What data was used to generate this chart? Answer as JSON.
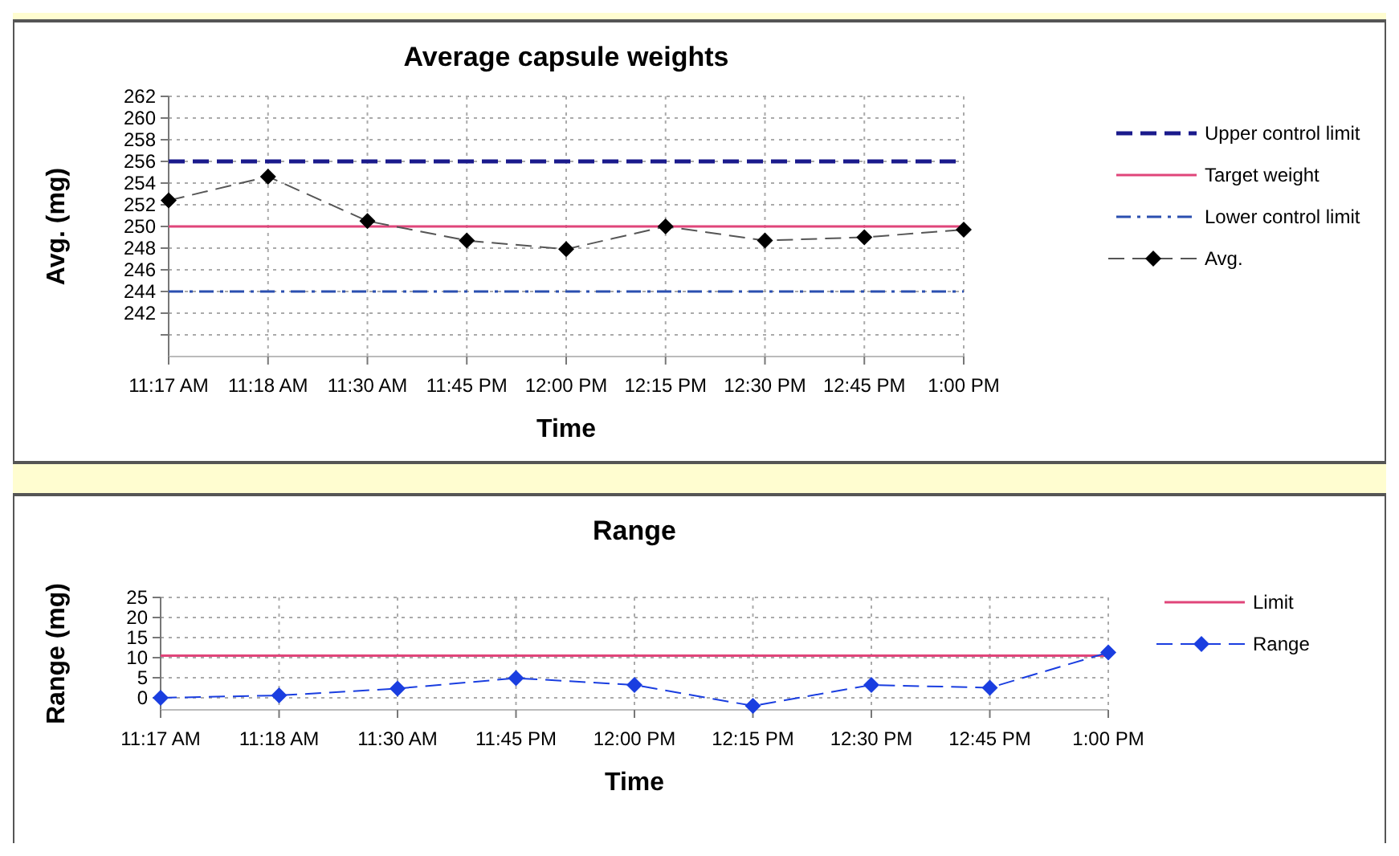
{
  "chart_data": [
    {
      "type": "line",
      "title": "Average capsule weights",
      "xlabel": "Time",
      "ylabel": "Avg. (mg)",
      "categories": [
        "11:17 AM",
        "11:18 AM",
        "11:30 AM",
        "11:45 PM",
        "12:00 PM",
        "12:15 PM",
        "12:30 PM",
        "12:45 PM",
        "1:00 PM"
      ],
      "series": [
        {
          "name": "Avg.",
          "color": "#000000",
          "values": [
            252.4,
            254.6,
            250.5,
            248.7,
            247.9,
            250.0,
            248.7,
            249.0,
            249.7
          ]
        }
      ],
      "ylim": [
        238,
        262
      ],
      "yticks": [
        {
          "value": 240,
          "label": null
        },
        242,
        244,
        246,
        248,
        250,
        252,
        254,
        256,
        258,
        260,
        262
      ],
      "ref_lines": [
        {
          "axis": "y",
          "value": 256,
          "label": "Upper control limit",
          "color": "#1a1a8c",
          "line_style": "dashed"
        },
        {
          "axis": "y",
          "value": 250,
          "label": "Target weight",
          "color": "#e0457a",
          "line_style": "solid"
        },
        {
          "axis": "y",
          "value": 244,
          "label": "Lower control limit",
          "color": "#2a4fb0",
          "line_style": "dashdot"
        }
      ],
      "grid": true,
      "legend": "right",
      "marker": "diamond",
      "line_style": "dashed"
    },
    {
      "type": "line",
      "title": "Range",
      "xlabel": "Time",
      "ylabel": "Range (mg)",
      "categories": [
        "11:17 AM",
        "11:18 AM",
        "11:30 AM",
        "11:45 PM",
        "12:00 PM",
        "12:15 PM",
        "12:30 PM",
        "12:45 PM",
        "1:00 PM"
      ],
      "series": [
        {
          "name": "Range",
          "color": "#1a3ee0",
          "values": [
            0,
            0.6,
            2.3,
            4.9,
            3.2,
            -2,
            3.2,
            2.5,
            11.3
          ]
        }
      ],
      "ylim": [
        -3,
        25
      ],
      "yticks": [
        0,
        5,
        10,
        15,
        20,
        25
      ],
      "ref_lines": [
        {
          "axis": "y",
          "value": 10.5,
          "label": "Limit",
          "color": "#e0457a",
          "line_style": "solid"
        }
      ],
      "grid": true,
      "legend": "right",
      "marker": "diamond",
      "line_style": "dashed"
    }
  ]
}
